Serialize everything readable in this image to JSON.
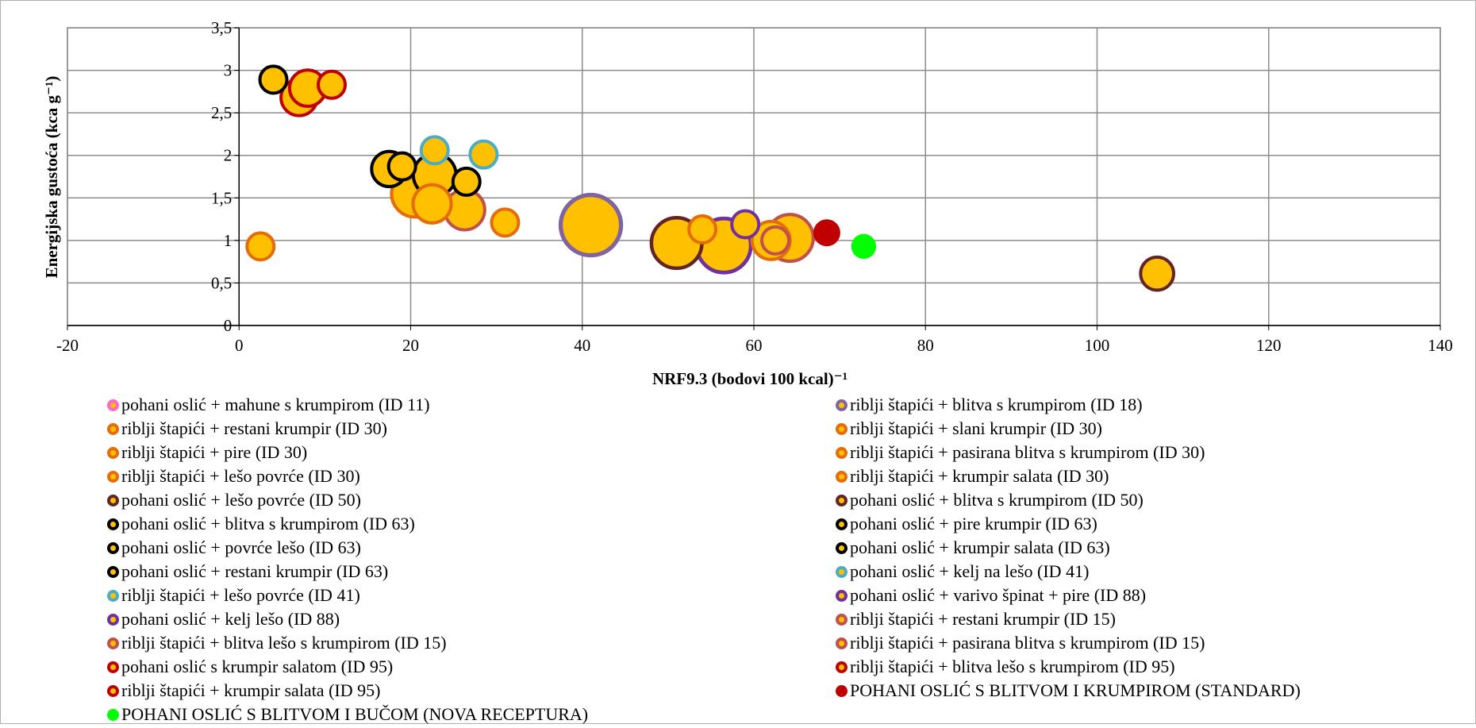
{
  "chart_data": {
    "type": "scatter",
    "title": "",
    "xlabel": "NRF9.3 (bodovi  100 kcal)⁻¹",
    "ylabel": "Energijska gustoća (kca g⁻¹)",
    "xlim": [
      -20,
      140
    ],
    "ylim": [
      0,
      3.5
    ],
    "x_ticks": [
      -20,
      0,
      20,
      40,
      60,
      80,
      100,
      120,
      140
    ],
    "y_ticks": [
      0,
      0.5,
      1,
      1.5,
      2,
      2.5,
      3,
      3.5
    ],
    "x_tick_labels": [
      "-20",
      "0",
      "20",
      "40",
      "60",
      "80",
      "100",
      "120",
      "140"
    ],
    "y_tick_labels": [
      "0",
      "0,5",
      "1",
      "1,5",
      "2",
      "2,5",
      "3",
      "3,5"
    ],
    "grid": true,
    "legend_position": "bottom",
    "marker_fill": "#FFC000",
    "series": [
      {
        "name": "pohani oslić + mahune s krumpirom (ID 11)",
        "edge": "#FF66CC",
        "fill": "#FFC000",
        "x": 19,
        "y": 1.87,
        "size": 1
      },
      {
        "name": "riblji štapići + blitva s krumpirom (ID 18)",
        "edge": "#8064A2",
        "fill": "#FFC000",
        "x": 41,
        "y": 1.18,
        "size": 5
      },
      {
        "name": "riblji štapići + restani krumpir (ID 30)",
        "edge": "#E46C0A",
        "fill": "#FFC000",
        "x": 2.5,
        "y": 0.93,
        "size": 1
      },
      {
        "name": "riblji štapići + slani krumpir (ID 30)",
        "edge": "#E46C0A",
        "fill": "#FFC000",
        "x": 31,
        "y": 1.21,
        "size": 1
      },
      {
        "name": "riblji štapići + pire (ID 30)",
        "edge": "#E46C0A",
        "fill": "#FFC000",
        "x": 54,
        "y": 1.13,
        "size": 1
      },
      {
        "name": "riblji štapići + pasirana blitva s krumpirom (ID 30)",
        "edge": "#E46C0A",
        "fill": "#FFC000",
        "x": 20.5,
        "y": 1.55,
        "size": 3
      },
      {
        "name": "riblji štapići + lešo povrće (ID 30)",
        "edge": "#E46C0A",
        "fill": "#FFC000",
        "x": 22.5,
        "y": 1.43,
        "size": 2
      },
      {
        "name": "riblji štapići + krumpir salata (ID 30)",
        "edge": "#E46C0A",
        "fill": "#FFC000",
        "x": 62,
        "y": 1,
        "size": 2
      },
      {
        "name": "pohani oslić + lešo povrće (ID 50)",
        "edge": "#632523",
        "fill": "#FFC000",
        "x": 51,
        "y": 0.97,
        "size": 3.5
      },
      {
        "name": "pohani oslić + blitva s krumpirom (ID 50)",
        "edge": "#632523",
        "fill": "#FFC000",
        "x": 107,
        "y": 0.61,
        "size": 1.5
      },
      {
        "name": "pohani oslić + blitva s krumpirom (ID 63)",
        "edge": "#000000",
        "fill": "#FFC000",
        "x": 22.8,
        "y": 1.77,
        "size": 2.5
      },
      {
        "name": "pohani oslić + pire krumpir (ID 63)",
        "edge": "#000000",
        "fill": "#FFC000",
        "x": 17.5,
        "y": 1.84,
        "size": 1.7
      },
      {
        "name": "pohani oslić + povrće lešo (ID 63)",
        "edge": "#000000",
        "fill": "#FFC000",
        "x": 26.5,
        "y": 1.69,
        "size": 1
      },
      {
        "name": "pohani oslić + krumpir salata (ID 63)",
        "edge": "#000000",
        "fill": "#FFC000",
        "x": 4,
        "y": 2.89,
        "size": 1
      },
      {
        "name": "pohani oslić + restani krumpir (ID 63)",
        "edge": "#000000",
        "fill": "#FFC000",
        "x": 19,
        "y": 1.87,
        "size": 1
      },
      {
        "name": "pohani oslić + kelj na lešo (ID 41)",
        "edge": "#4BACC6",
        "fill": "#FFC000",
        "x": 28.5,
        "y": 2.01,
        "size": 1
      },
      {
        "name": "riblji štapići + lešo povrće (ID 41)",
        "edge": "#4BACC6",
        "fill": "#FFC000",
        "x": 22.8,
        "y": 2.06,
        "size": 1
      },
      {
        "name": "pohani oslić + varivo špinat + pire  (ID 88)",
        "edge": "#7030A0",
        "fill": "#FFC000",
        "x": 59,
        "y": 1.19,
        "size": 1
      },
      {
        "name": "pohani oslić + kelj lešo (ID 88)",
        "edge": "#7030A0",
        "fill": "#FFC000",
        "x": 56.5,
        "y": 0.94,
        "size": 4
      },
      {
        "name": "riblji štapići + restani krumpir (ID 15)",
        "edge": "#C0504D",
        "fill": "#FFC000",
        "x": 26.3,
        "y": 1.36,
        "size": 2.2
      },
      {
        "name": "riblji štapići + blitva lešo s krumpirom (ID 15)",
        "edge": "#C0504D",
        "fill": "#FFC000",
        "x": 64.2,
        "y": 1.03,
        "size": 3
      },
      {
        "name": "riblji štapići + pasirana blitva s krumpirom (ID 15)",
        "edge": "#C0504D",
        "fill": "#FFC000",
        "x": 62.5,
        "y": 1.0,
        "size": 1
      },
      {
        "name": "pohani oslić s krumpir salatom (ID 95)",
        "edge": "#C00000",
        "fill": "#FFC000",
        "x": 7,
        "y": 2.68,
        "size": 1.8
      },
      {
        "name": "riblji štapići + blitva lešo s krumpirom (ID 95)",
        "edge": "#C00000",
        "fill": "#FFC000",
        "x": 10.8,
        "y": 2.83,
        "size": 1
      },
      {
        "name": "riblji štapići + krumpir salata (ID 95)",
        "edge": "#C00000",
        "fill": "#FFC000",
        "x": 8,
        "y": 2.79,
        "size": 1.8
      },
      {
        "name": "POHANI OSLIĆ S BLITVOM I KRUMPIROM (STANDARD)",
        "edge": "#C00000",
        "fill": "#C00000",
        "x": 68.5,
        "y": 1.09,
        "size": 1
      },
      {
        "name": "POHANI OSLIĆ S BLITVOM I BUČOM (NOVA RECEPTURA)",
        "edge": "#00FF00",
        "fill": "#00FF00",
        "x": 72.8,
        "y": 0.93,
        "size": 0.85
      }
    ]
  },
  "legend_layout": {
    "columns": [
      [
        0,
        2,
        4,
        6,
        8,
        10,
        12,
        14,
        16,
        18,
        20,
        22,
        24,
        26
      ],
      [
        1,
        3,
        5,
        7,
        9,
        11,
        13,
        15,
        17,
        19,
        21,
        23,
        25
      ]
    ]
  }
}
